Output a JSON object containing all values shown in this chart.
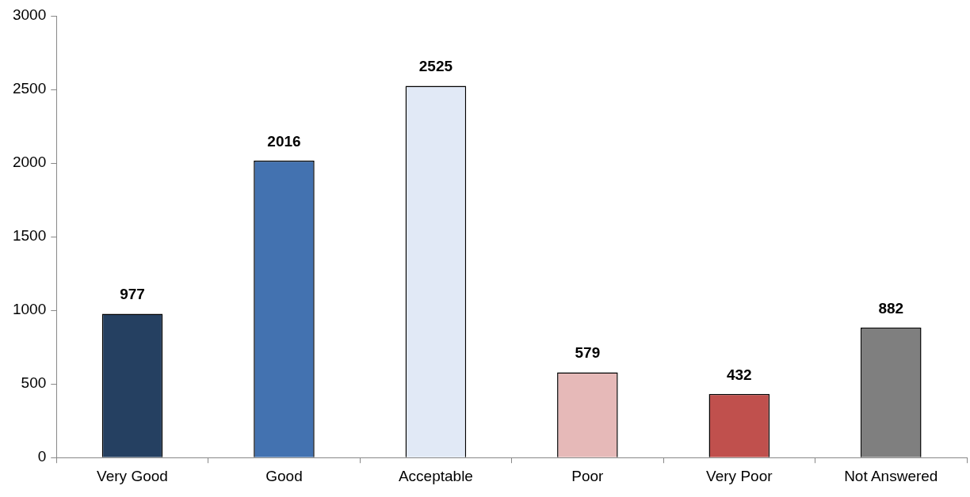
{
  "chart_data": {
    "type": "bar",
    "categories": [
      "Very Good",
      "Good",
      "Acceptable",
      "Poor",
      "Very Poor",
      "Not Answered"
    ],
    "values": [
      977,
      2016,
      2525,
      579,
      432,
      882
    ],
    "colors": [
      "#254061",
      "#4372b0",
      "#e1e9f6",
      "#e6b9b8",
      "#c0504d",
      "#7f7f7f"
    ],
    "ylim": [
      0,
      3000
    ],
    "yticks": [
      0,
      500,
      1000,
      1500,
      2000,
      2500,
      3000
    ],
    "data_labels": true,
    "grid": false,
    "legend": false
  }
}
